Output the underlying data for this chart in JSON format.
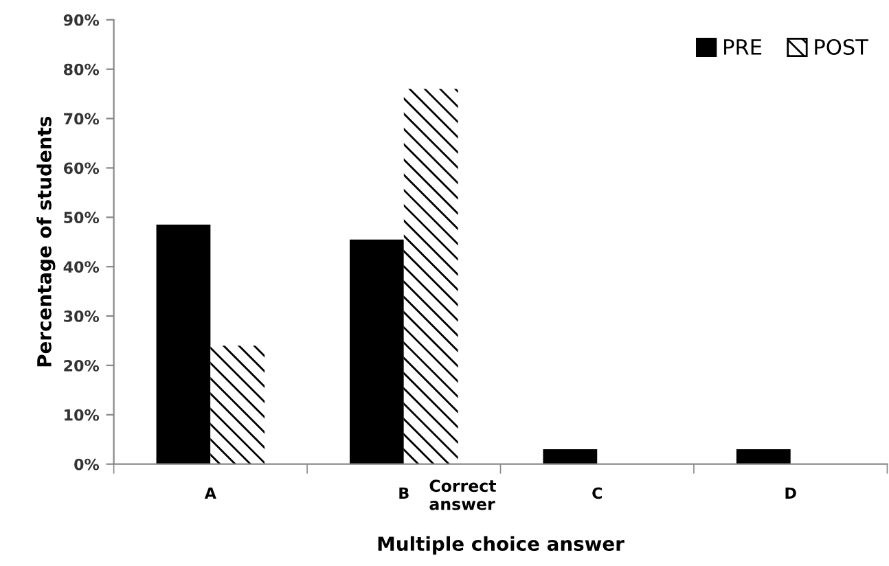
{
  "chart_data": {
    "type": "bar",
    "xlabel": "Multiple choice answer",
    "ylabel": "Percentage of students",
    "categories": [
      "A",
      "B",
      "C",
      "D"
    ],
    "series": [
      {
        "name": "PRE",
        "color": "#000000",
        "values": [
          48.5,
          45.5,
          3,
          3
        ]
      },
      {
        "name": "POST",
        "color": "#ffffff",
        "values": [
          24,
          76,
          0,
          0
        ]
      }
    ],
    "ylim": [
      0,
      90
    ],
    "yticks": [
      {
        "value": 0,
        "label": "0%"
      },
      {
        "value": 10,
        "label": "10%"
      },
      {
        "value": 20,
        "label": "20%"
      },
      {
        "value": 30,
        "label": "30%"
      },
      {
        "value": 40,
        "label": "40%"
      },
      {
        "value": 50,
        "label": "50%"
      },
      {
        "value": 60,
        "label": "60%"
      },
      {
        "value": 70,
        "label": "70%"
      },
      {
        "value": 80,
        "label": "80%"
      },
      {
        "value": 90,
        "label": "90%"
      }
    ],
    "annotations": [
      "Correct\nanswer"
    ],
    "grid": false,
    "legend": "top right"
  }
}
